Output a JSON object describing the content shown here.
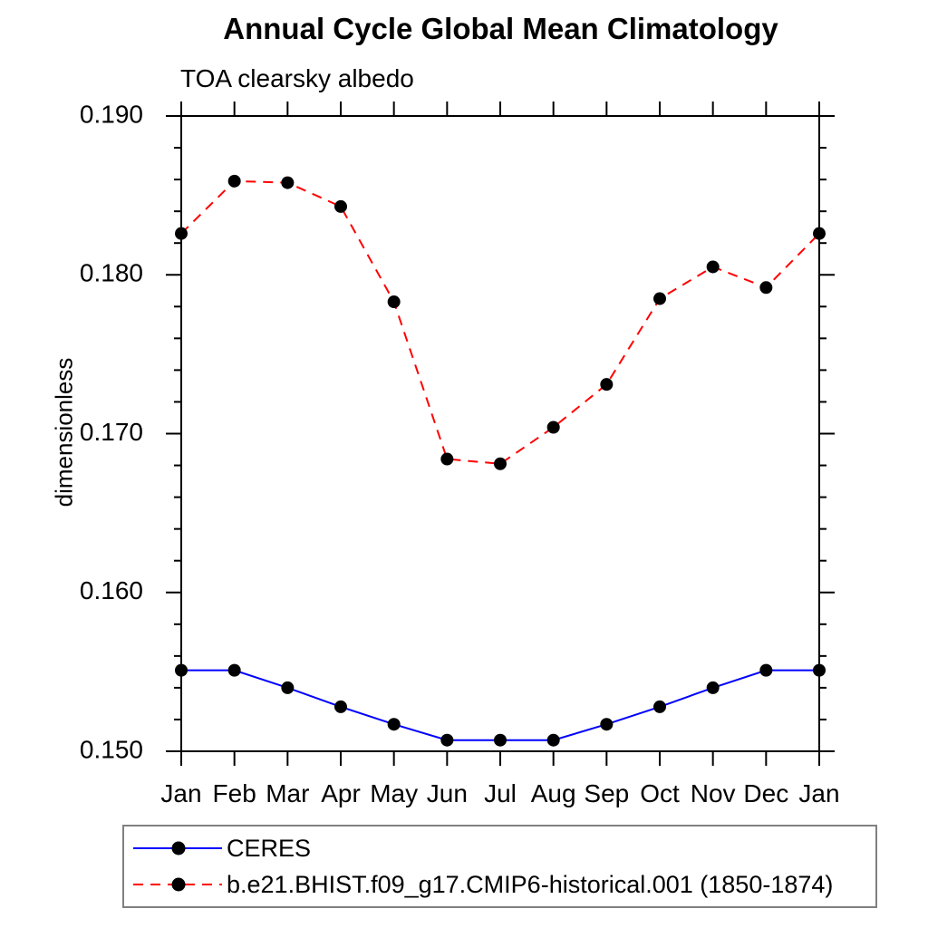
{
  "chart_data": {
    "type": "line",
    "title": "Annual Cycle Global Mean Climatology",
    "subtitle": "TOA clearsky albedo",
    "ylabel": "dimensionless",
    "xlabel": "",
    "categories": [
      "Jan",
      "Feb",
      "Mar",
      "Apr",
      "May",
      "Jun",
      "Jul",
      "Aug",
      "Sep",
      "Oct",
      "Nov",
      "Dec",
      "Jan"
    ],
    "ylim": [
      0.15,
      0.19
    ],
    "yticks": {
      "labels": [
        "0.150",
        "0.160",
        "0.170",
        "0.180",
        "0.190"
      ],
      "values": [
        0.15,
        0.16,
        0.17,
        0.18,
        0.19
      ],
      "minor_step": 0.002
    },
    "grid": false,
    "legend_position": "bottom-left",
    "marker": {
      "shape": "circle",
      "color": "#000000"
    },
    "series": [
      {
        "name": "CERES",
        "color": "#0000ff",
        "line_style": "solid",
        "values": [
          0.1551,
          0.1551,
          0.154,
          0.1528,
          0.1517,
          0.1507,
          0.1507,
          0.1507,
          0.1517,
          0.1528,
          0.154,
          0.1551,
          0.1551
        ]
      },
      {
        "name": "b.e21.BHIST.f09_g17.CMIP6-historical.001 (1850-1874)",
        "color": "#ff0000",
        "line_style": "dashed",
        "values": [
          0.1826,
          0.1859,
          0.1858,
          0.1843,
          0.1783,
          0.1684,
          0.1681,
          0.1704,
          0.1731,
          0.1785,
          0.1805,
          0.1792,
          0.1826
        ]
      }
    ]
  },
  "colors": {
    "frame": "#000000",
    "text": "#000000",
    "legend_border": "#808080",
    "background": "#ffffff"
  }
}
